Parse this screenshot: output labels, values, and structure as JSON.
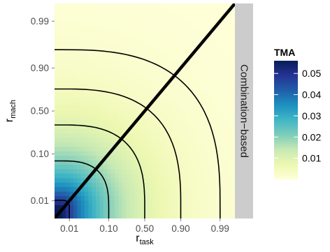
{
  "chart_data": {
    "type": "heatmap",
    "title": "",
    "facet_label": "Combination−based",
    "xlabel": {
      "main": "r",
      "sub": "task"
    },
    "ylabel": {
      "main": "r",
      "sub": "mach"
    },
    "x_ticks": [
      "0.01",
      "0.10",
      "0.50",
      "0.90",
      "0.99"
    ],
    "y_ticks": [
      "0.01",
      "0.10",
      "0.50",
      "0.90",
      "0.99"
    ],
    "xlim": [
      0,
      1
    ],
    "ylim": [
      0,
      1
    ],
    "legend": {
      "title": "TMA",
      "position": "right",
      "ticks": [
        "0.05",
        "0.04",
        "0.03",
        "0.02",
        "0.01"
      ],
      "tick_values": [
        0.05,
        0.04,
        0.03,
        0.02,
        0.01
      ],
      "range": [
        0,
        0.056
      ],
      "colors": [
        "#ffffd9",
        "#edf8b1",
        "#c7e9b4",
        "#7fcdbb",
        "#41b6c4",
        "#1d91c0",
        "#225ea8",
        "#253494",
        "#081d58"
      ]
    },
    "contours": [
      {
        "level": "inner",
        "x_end": "0.01"
      },
      {
        "level": "2",
        "x_end": "0.10"
      },
      {
        "level": "3",
        "x_end": "0.50"
      },
      {
        "level": "4",
        "x_end": "0.90"
      },
      {
        "level": "outer",
        "x_end": "0.99"
      }
    ],
    "diagonal": "y = x",
    "panel_background": "#ebebeb",
    "strip_background": "#cccccc",
    "grid": true
  }
}
